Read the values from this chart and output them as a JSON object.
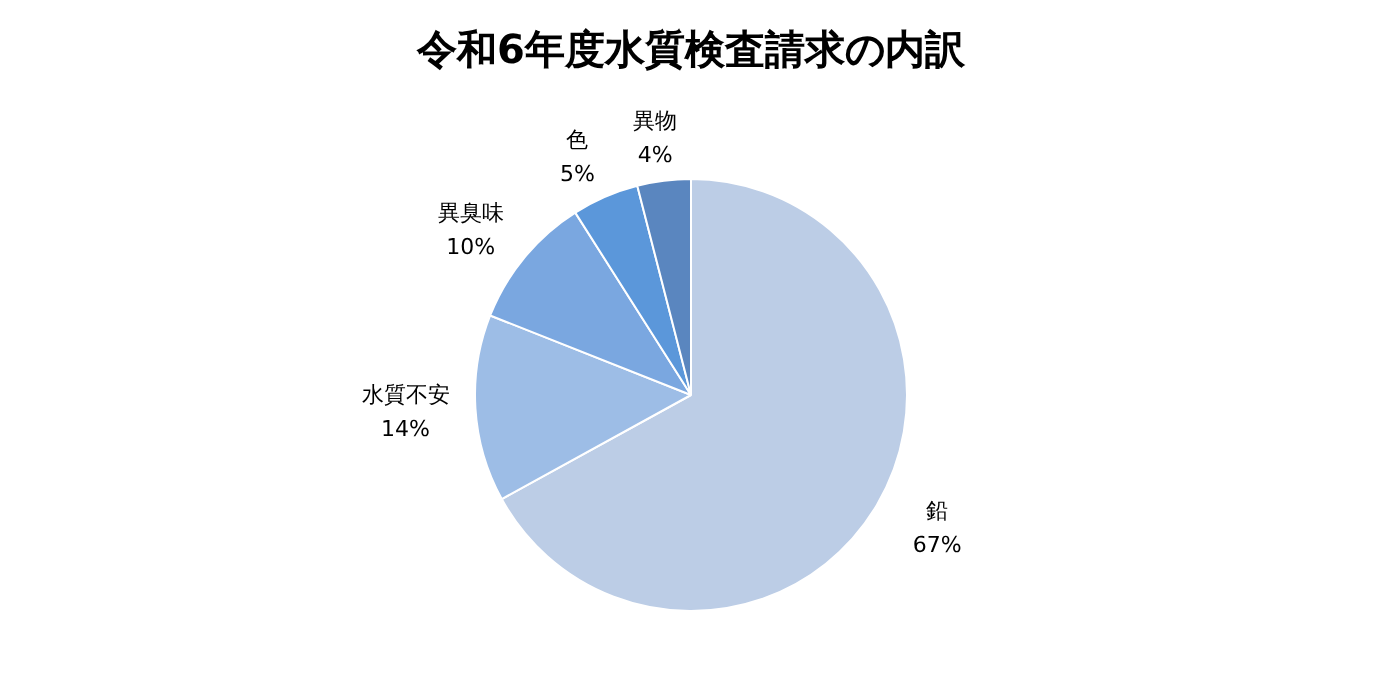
{
  "chart_data": {
    "type": "pie",
    "title": "令和6年度水質検査請求の内訳",
    "categories": [
      "鉛",
      "水質不安",
      "異臭味",
      "色",
      "異物"
    ],
    "values": [
      67,
      14,
      10,
      5,
      4
    ],
    "value_labels": [
      "67%",
      "14%",
      "10%",
      "5%",
      "4%"
    ],
    "colors": [
      "#bccde6",
      "#9dbde6",
      "#7aa7e0",
      "#5b97da",
      "#5a86bf"
    ]
  }
}
